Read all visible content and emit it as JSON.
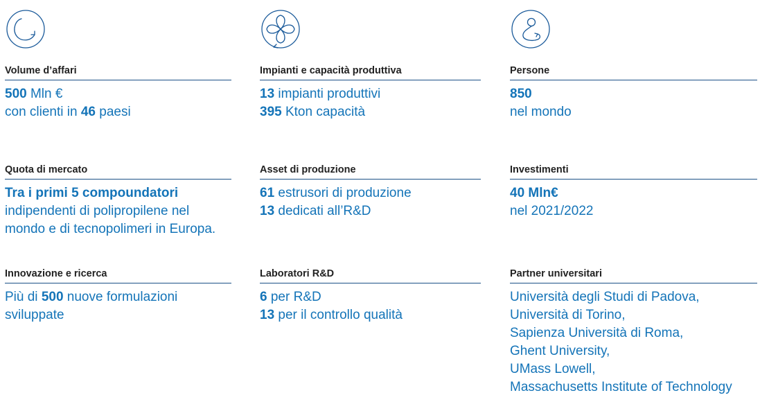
{
  "colors": {
    "accent": "#1474b8",
    "divider": "#1a4f86",
    "heading": "#222222"
  },
  "icons": [
    "circular-arrow-icon",
    "flower-loop-icon",
    "person-circle-icon"
  ],
  "columns": [
    {
      "icon": "circular-arrow-icon",
      "blocks": [
        {
          "label": "Volume d’affari",
          "lines": [
            {
              "bold": "500",
              "text": " Mln €"
            },
            {
              "pre": "con clienti in ",
              "bold": "46",
              "text": " paesi"
            }
          ]
        },
        {
          "label": "Quota di mercato",
          "lines": [
            {
              "bold": "Tra i primi 5 compoundatori"
            },
            {
              "text": "indipendenti di polipropilene nel"
            },
            {
              "text": "mondo e di tecnopolimeri in Europa."
            }
          ]
        },
        {
          "label": "Innovazione e ricerca",
          "lines": [
            {
              "pre": "Più di ",
              "bold": "500",
              "text": " nuove formulazioni"
            },
            {
              "text": "sviluppate"
            }
          ]
        }
      ]
    },
    {
      "icon": "flower-loop-icon",
      "blocks": [
        {
          "label": "Impianti e capacità produttiva",
          "lines": [
            {
              "bold": "13",
              "text": " impianti produttivi"
            },
            {
              "bold": "395",
              "text": " Kton capacità"
            }
          ]
        },
        {
          "label": "Asset di produzione",
          "lines": [
            {
              "bold": "61",
              "text": " estrusori di produzione"
            },
            {
              "bold": "13",
              "text": " dedicati all’R&D"
            }
          ]
        },
        {
          "label": "Laboratori R&D",
          "lines": [
            {
              "bold": "6",
              "text": " per R&D"
            },
            {
              "bold": "13",
              "text": " per il controllo qualità"
            }
          ]
        }
      ]
    },
    {
      "icon": "person-circle-icon",
      "blocks": [
        {
          "label": "Persone",
          "lines": [
            {
              "bold": "850"
            },
            {
              "text": "nel mondo"
            }
          ]
        },
        {
          "label": "Investimenti",
          "lines": [
            {
              "bold": "40 Mln€"
            },
            {
              "text": "nel 2021/2022"
            }
          ]
        },
        {
          "label": "Partner universitari",
          "lines": [
            {
              "text": "Università degli Studi di Padova,"
            },
            {
              "text": "Università di Torino,"
            },
            {
              "text": "Sapienza Università di Roma,"
            },
            {
              "text": "Ghent University,"
            },
            {
              "text": "UMass Lowell,"
            },
            {
              "text": "Massachusetts Institute of Technology"
            }
          ]
        }
      ]
    }
  ]
}
